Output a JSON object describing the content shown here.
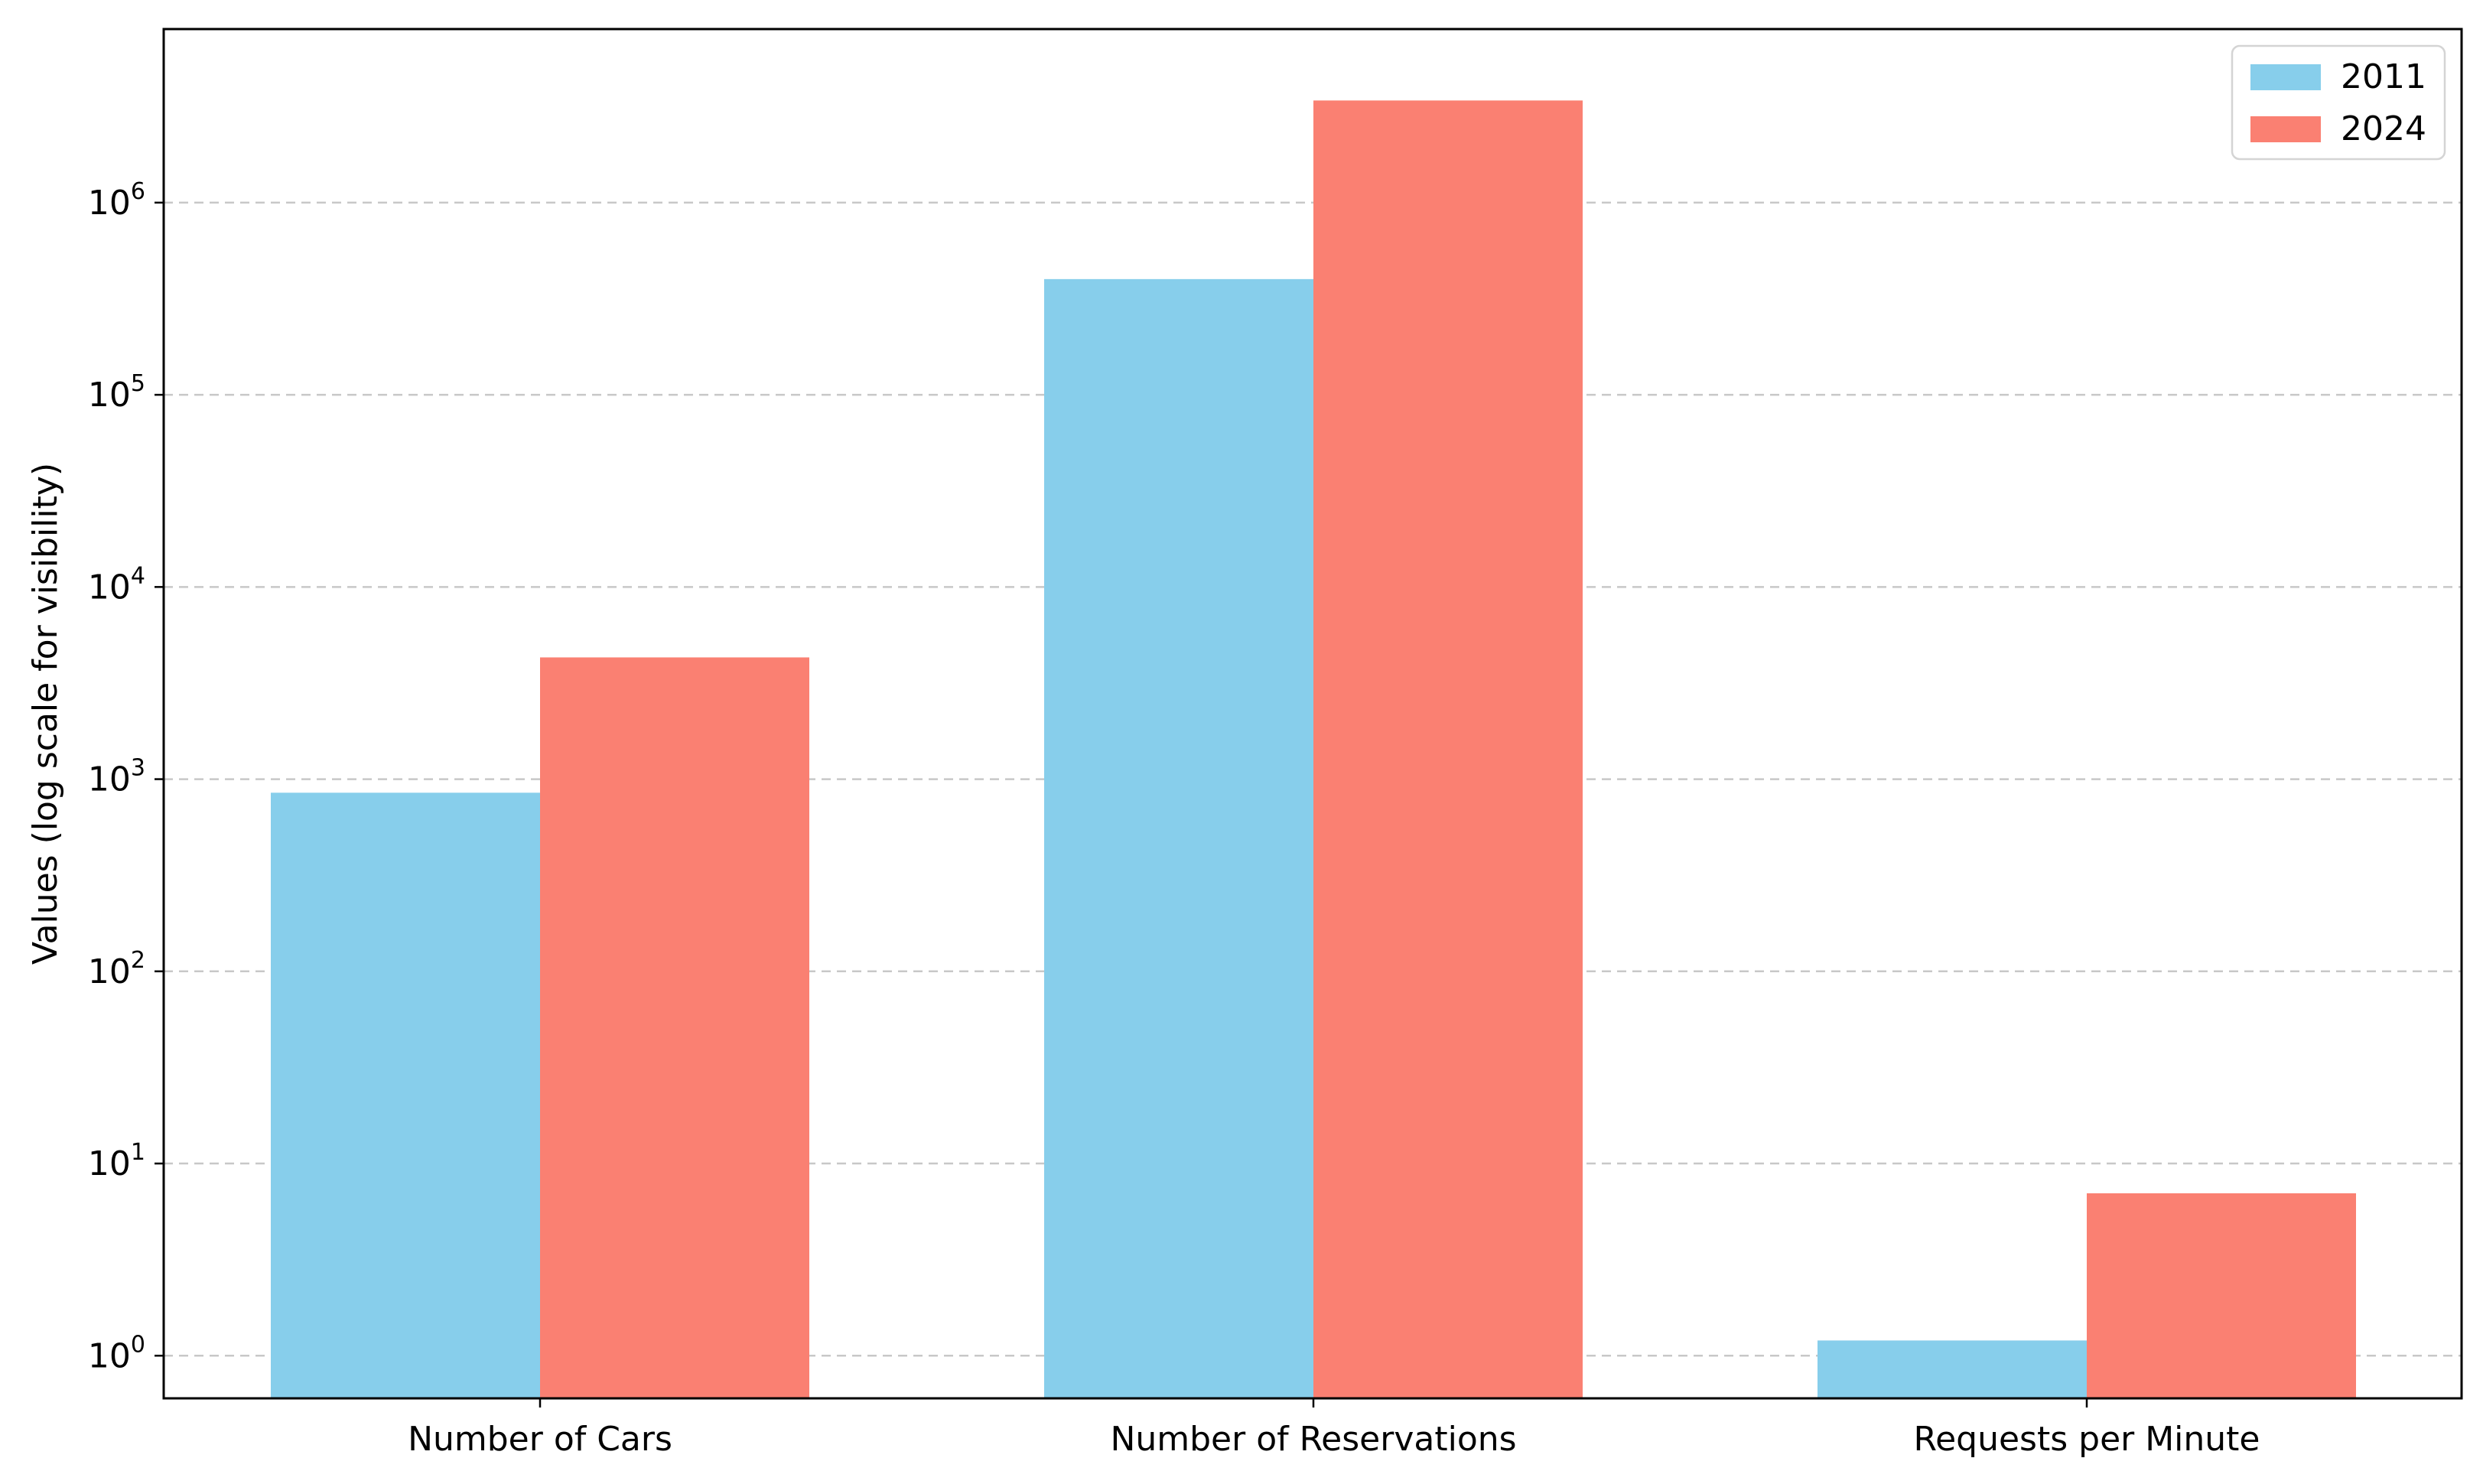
{
  "chart_data": {
    "type": "bar",
    "categories": [
      "Number of Cars",
      "Number of Reservations",
      "Requests per Minute"
    ],
    "series": [
      {
        "name": "2011",
        "values": [
          850,
          400000,
          1.2
        ],
        "color": "#87CEEB"
      },
      {
        "name": "2024",
        "values": [
          4300,
          3400000,
          7
        ],
        "color": "#FA8072"
      }
    ],
    "title": "",
    "xlabel": "",
    "ylabel": "Values (log scale for visibility)",
    "yscale": "log",
    "ylim": [
      0.6,
      8000000
    ],
    "yticks": [
      {
        "base": "10",
        "exp": "0",
        "value": 1
      },
      {
        "base": "10",
        "exp": "1",
        "value": 10
      },
      {
        "base": "10",
        "exp": "2",
        "value": 100
      },
      {
        "base": "10",
        "exp": "3",
        "value": 1000
      },
      {
        "base": "10",
        "exp": "4",
        "value": 10000
      },
      {
        "base": "10",
        "exp": "5",
        "value": 100000
      },
      {
        "base": "10",
        "exp": "6",
        "value": 1000000
      }
    ],
    "grid": "y-dashed",
    "legend_position": "top-right"
  }
}
